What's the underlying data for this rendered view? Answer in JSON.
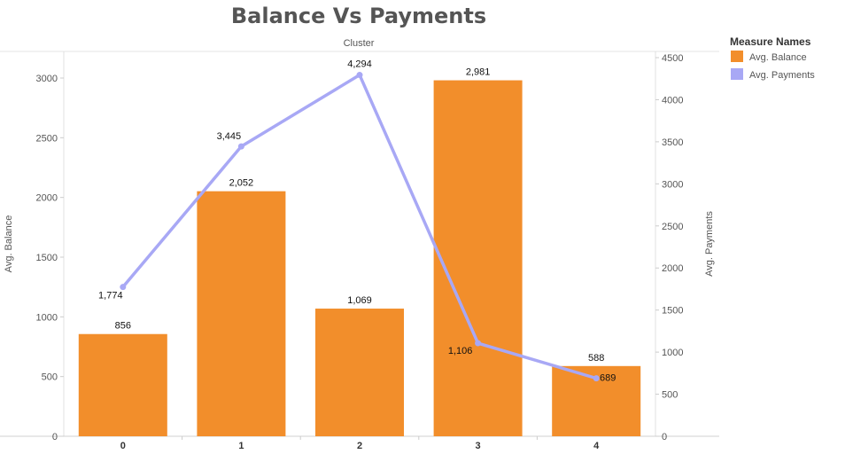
{
  "chart_data": {
    "type": "bar",
    "title": "Balance Vs  Payments",
    "xlabel": "Cluster",
    "categories": [
      "0",
      "1",
      "2",
      "3",
      "4"
    ],
    "series": [
      {
        "name": "Avg. Balance",
        "type": "bar",
        "axis": "left",
        "color": "#f28e2b",
        "values": [
          856,
          2052,
          1069,
          2981,
          588
        ],
        "labels": [
          "856",
          "2,052",
          "1,069",
          "2,981",
          "588"
        ]
      },
      {
        "name": "Avg. Payments",
        "type": "line",
        "axis": "right",
        "color": "#a8a8f5",
        "values": [
          1774,
          3445,
          4294,
          1106,
          689
        ],
        "labels": [
          "1,774",
          "3,445",
          "4,294",
          "1,106",
          "689"
        ]
      }
    ],
    "y_left": {
      "label": "Avg. Balance",
      "range": [
        0,
        3200
      ],
      "ticks": [
        0,
        500,
        1000,
        1500,
        2000,
        2500,
        3000
      ]
    },
    "y_right": {
      "label": "Avg. Payments",
      "range": [
        0,
        4500
      ],
      "ticks": [
        0,
        500,
        1000,
        1500,
        2000,
        2500,
        3000,
        3500,
        4000,
        4500
      ]
    },
    "grid": false,
    "legend": {
      "title": "Measure Names",
      "position": "top-right"
    }
  }
}
